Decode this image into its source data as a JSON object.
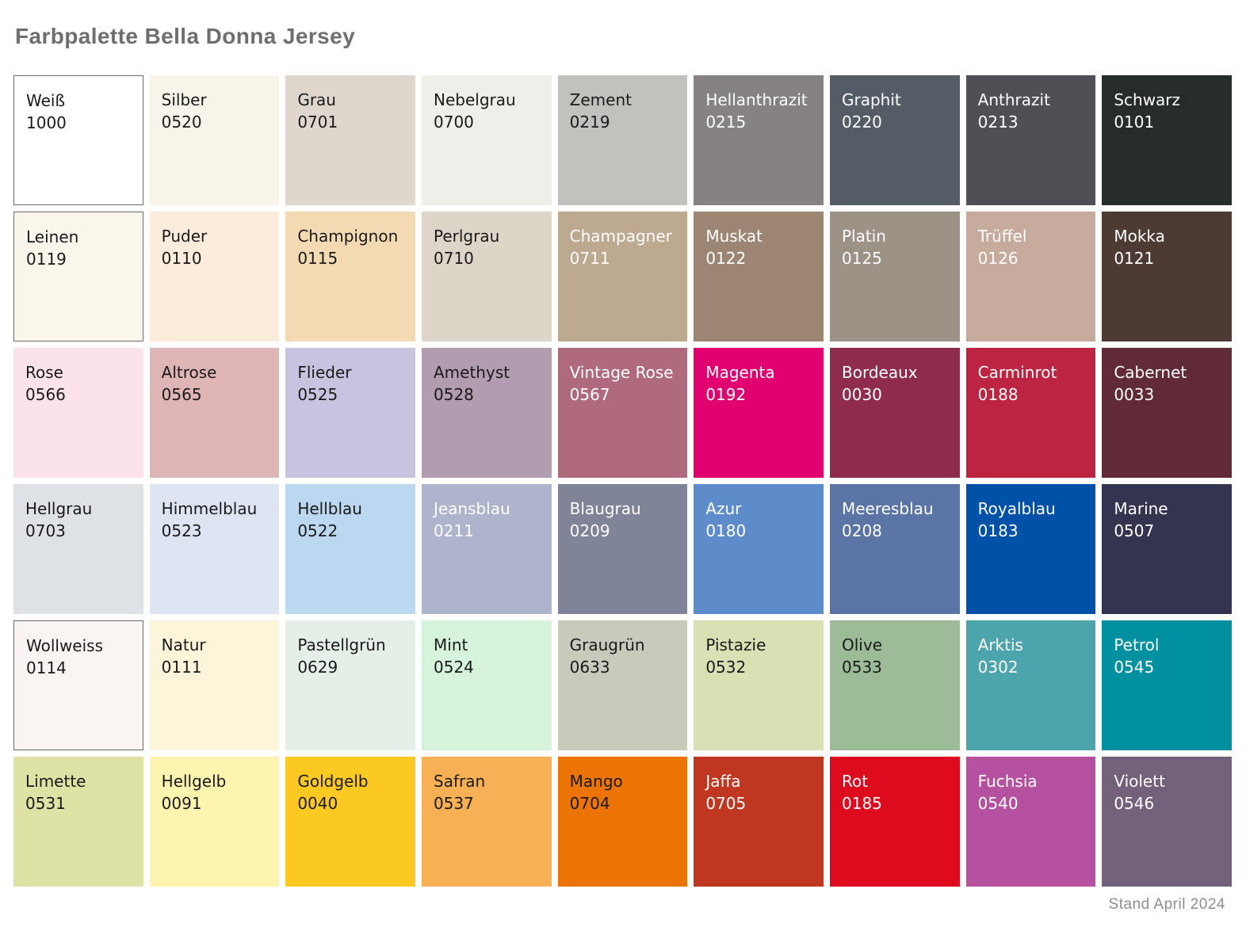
{
  "page": {
    "title": "Farbpalette Bella Donna Jersey",
    "footer": "Stand April 2024"
  },
  "palette": {
    "rows": 6,
    "columns": 9,
    "border_color": "#6b6b6b",
    "dark_text_color": "#1a1a1a",
    "light_text_color": "#ffffff",
    "swatches": [
      {
        "name": "Weiß",
        "code": "1000",
        "color": "#FFFFFF",
        "text_color": "#1a1a1a",
        "border": true
      },
      {
        "name": "Silber",
        "code": "0520",
        "color": "#F8F4E9",
        "text_color": "#1a1a1a",
        "border": false
      },
      {
        "name": "Grau",
        "code": "0701",
        "color": "#DFD6CE",
        "text_color": "#1a1a1a",
        "border": false
      },
      {
        "name": "Nebelgrau",
        "code": "0700",
        "color": "#F0EEE9",
        "text_color": "#1a1a1a",
        "border": false
      },
      {
        "name": "Zement",
        "code": "0219",
        "color": "#C2C1BD",
        "text_color": "#1a1a1a",
        "border": false
      },
      {
        "name": "Hellanthrazit",
        "code": "0215",
        "color": "#868183",
        "text_color": "#ffffff",
        "border": false
      },
      {
        "name": "Graphit",
        "code": "0220",
        "color": "#545D66",
        "text_color": "#ffffff",
        "border": false
      },
      {
        "name": "Anthrazit",
        "code": "0213",
        "color": "#514E56",
        "text_color": "#ffffff",
        "border": false
      },
      {
        "name": "Schwarz",
        "code": "0101",
        "color": "#262C29",
        "text_color": "#ffffff",
        "border": false
      },
      {
        "name": "Leinen",
        "code": "0119",
        "color": "#FAF6EC",
        "text_color": "#1a1a1a",
        "border": true
      },
      {
        "name": "Puder",
        "code": "0110",
        "color": "#FBECDC",
        "text_color": "#1a1a1a",
        "border": false
      },
      {
        "name": "Champignon",
        "code": "0115",
        "color": "#F4DAB2",
        "text_color": "#1a1a1a",
        "border": false
      },
      {
        "name": "Perlgrau",
        "code": "0710",
        "color": "#DDD5C7",
        "text_color": "#1a1a1a",
        "border": false
      },
      {
        "name": "Champagner",
        "code": "0711",
        "color": "#BDA98F",
        "text_color": "#ffffff",
        "border": false
      },
      {
        "name": "Muskat",
        "code": "0122",
        "color": "#9C8673",
        "text_color": "#ffffff",
        "border": false
      },
      {
        "name": "Platin",
        "code": "0125",
        "color": "#9D9286",
        "text_color": "#ffffff",
        "border": false
      },
      {
        "name": "Trüffel",
        "code": "0126",
        "color": "#C6AB9D",
        "text_color": "#ffffff",
        "border": false
      },
      {
        "name": "Mokka",
        "code": "0121",
        "color": "#4D3B33",
        "text_color": "#ffffff",
        "border": false
      },
      {
        "name": "Rose",
        "code": "0566",
        "color": "#FCE3E9",
        "text_color": "#1a1a1a",
        "border": false
      },
      {
        "name": "Altrose",
        "code": "0565",
        "color": "#E0B5B5",
        "text_color": "#1a1a1a",
        "border": false
      },
      {
        "name": "Flieder",
        "code": "0525",
        "color": "#CAC3DF",
        "text_color": "#1a1a1a",
        "border": false
      },
      {
        "name": "Amethyst",
        "code": "0528",
        "color": "#B29CAF",
        "text_color": "#1a1a1a",
        "border": false
      },
      {
        "name": "Vintage Rose",
        "code": "0567",
        "color": "#B06A7E",
        "text_color": "#ffffff",
        "border": false
      },
      {
        "name": "Magenta",
        "code": "0192",
        "color": "#E0006F",
        "text_color": "#ffffff",
        "border": false
      },
      {
        "name": "Bordeaux",
        "code": "0030",
        "color": "#8F2C4D",
        "text_color": "#ffffff",
        "border": false
      },
      {
        "name": "Carminrot",
        "code": "0188",
        "color": "#BC2441",
        "text_color": "#ffffff",
        "border": false
      },
      {
        "name": "Cabernet",
        "code": "0033",
        "color": "#602B36",
        "text_color": "#ffffff",
        "border": false
      },
      {
        "name": "Hellgrau",
        "code": "0703",
        "color": "#DEE1E6",
        "text_color": "#1a1a1a",
        "border": false
      },
      {
        "name": "Himmelblau",
        "code": "0523",
        "color": "#DDE5F3",
        "text_color": "#1a1a1a",
        "border": false
      },
      {
        "name": "Hellblau",
        "code": "0522",
        "color": "#BCD8F1",
        "text_color": "#1a1a1a",
        "border": false
      },
      {
        "name": "Jeansblau",
        "code": "0211",
        "color": "#AEB4CB",
        "text_color": "#ffffff",
        "border": false
      },
      {
        "name": "Blaugrau",
        "code": "0209",
        "color": "#7F8499",
        "text_color": "#ffffff",
        "border": false
      },
      {
        "name": "Azur",
        "code": "0180",
        "color": "#5E8CCB",
        "text_color": "#ffffff",
        "border": false
      },
      {
        "name": "Meeresblau",
        "code": "0208",
        "color": "#5B74A6",
        "text_color": "#ffffff",
        "border": false
      },
      {
        "name": "Royalblau",
        "code": "0183",
        "color": "#0052A9",
        "text_color": "#ffffff",
        "border": false
      },
      {
        "name": "Marine",
        "code": "0507",
        "color": "#343450",
        "text_color": "#ffffff",
        "border": false
      },
      {
        "name": "Wollweiss",
        "code": "0114",
        "color": "#FAF4F3",
        "text_color": "#1a1a1a",
        "border": true
      },
      {
        "name": "Natur",
        "code": "0111",
        "color": "#FCF5D9",
        "text_color": "#1a1a1a",
        "border": false
      },
      {
        "name": "Pastellgrün",
        "code": "0629",
        "color": "#E4EFE7",
        "text_color": "#1a1a1a",
        "border": false
      },
      {
        "name": "Mint",
        "code": "0524",
        "color": "#D5F3DA",
        "text_color": "#1a1a1a",
        "border": false
      },
      {
        "name": "Graugrün",
        "code": "0633",
        "color": "#C8CABC",
        "text_color": "#1a1a1a",
        "border": false
      },
      {
        "name": "Pistazie",
        "code": "0532",
        "color": "#D9E0B4",
        "text_color": "#1a1a1a",
        "border": false
      },
      {
        "name": "Olive",
        "code": "0533",
        "color": "#9BBC96",
        "text_color": "#1a1a1a",
        "border": false
      },
      {
        "name": "Arktis",
        "code": "0302",
        "color": "#4CA4AC",
        "text_color": "#ffffff",
        "border": false
      },
      {
        "name": "Petrol",
        "code": "0545",
        "color": "#00909F",
        "text_color": "#ffffff",
        "border": false
      },
      {
        "name": "Limette",
        "code": "0531",
        "color": "#DEE3A5",
        "text_color": "#1a1a1a",
        "border": false
      },
      {
        "name": "Hellgelb",
        "code": "0091",
        "color": "#FCF4AF",
        "text_color": "#1a1a1a",
        "border": false
      },
      {
        "name": "Goldgelb",
        "code": "0040",
        "color": "#FCC923",
        "text_color": "#1a1a1a",
        "border": false
      },
      {
        "name": "Safran",
        "code": "0537",
        "color": "#F8B055",
        "text_color": "#1a1a1a",
        "border": false
      },
      {
        "name": "Mango",
        "code": "0704",
        "color": "#EC7404",
        "text_color": "#1a1a1a",
        "border": false
      },
      {
        "name": "Jaffa",
        "code": "0705",
        "color": "#BF3720",
        "text_color": "#ffffff",
        "border": false
      },
      {
        "name": "Rot",
        "code": "0185",
        "color": "#DD0B1D",
        "text_color": "#ffffff",
        "border": false
      },
      {
        "name": "Fuchsia",
        "code": "0540",
        "color": "#B5519F",
        "text_color": "#ffffff",
        "border": false
      },
      {
        "name": "Violett",
        "code": "0546",
        "color": "#73617B",
        "text_color": "#ffffff",
        "border": false
      }
    ]
  }
}
